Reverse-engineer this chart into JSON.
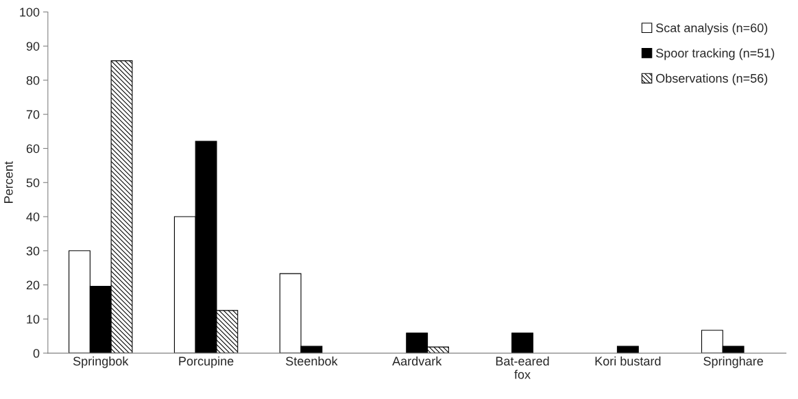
{
  "chart_data": {
    "type": "bar",
    "ylabel": "Percent",
    "categories": [
      "Springbok",
      "Porcupine",
      "Steenbok",
      "Aardvark",
      "Bat-eared\nfox",
      "Kori bustard",
      "Springhare"
    ],
    "series": [
      {
        "name": "Scat analysis (n=60)",
        "color": "#ffffff",
        "values": [
          30,
          40,
          23.3,
          null,
          null,
          null,
          6.7
        ]
      },
      {
        "name": "Spoor tracking (n=51)",
        "color": "#000000",
        "values": [
          19.6,
          62.1,
          2,
          5.9,
          5.9,
          2,
          2
        ]
      },
      {
        "name": "Observations (n=56)",
        "color": "#000000",
        "values": [
          85.7,
          12.5,
          null,
          1.8,
          null,
          null,
          null
        ]
      }
    ],
    "ylim": [
      0,
      100
    ],
    "yticks": [
      0,
      10,
      20,
      30,
      40,
      50,
      60,
      70,
      80,
      90,
      100
    ],
    "grid": false,
    "legend": "top right"
  }
}
